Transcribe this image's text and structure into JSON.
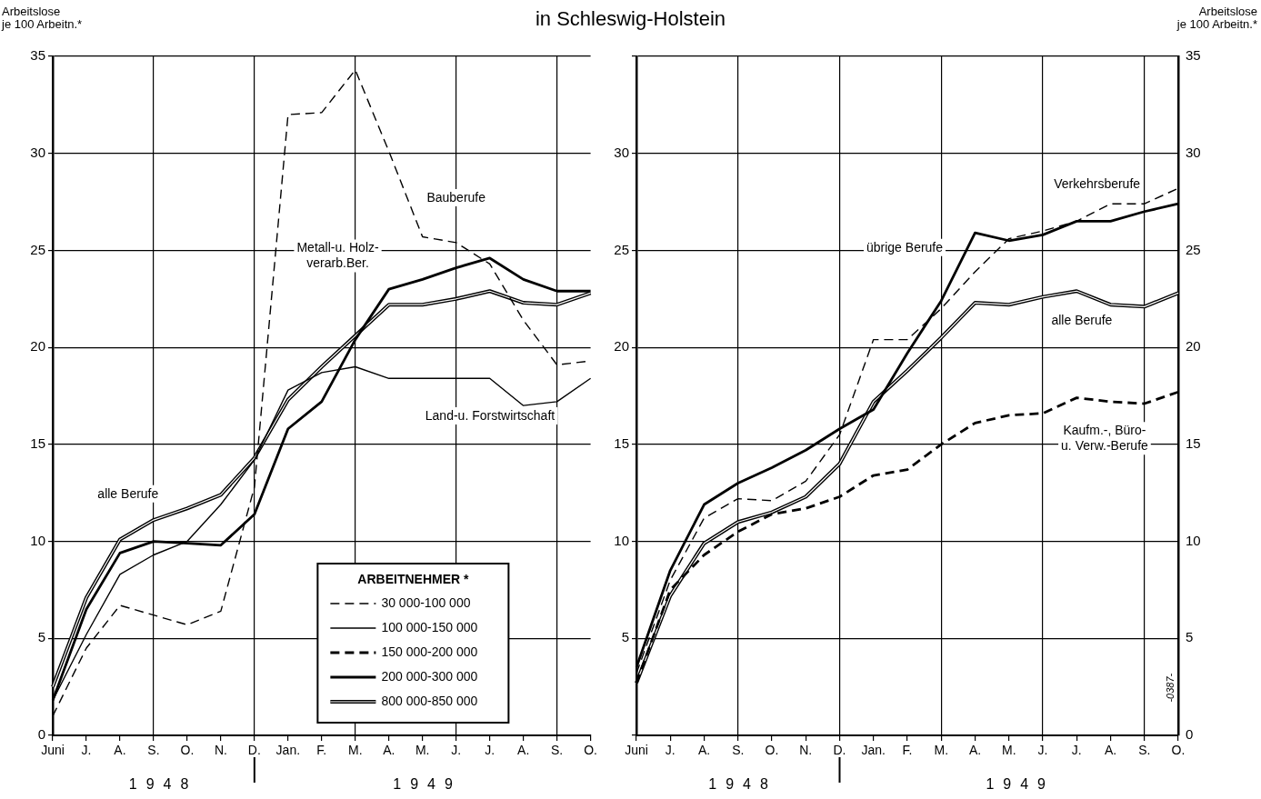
{
  "chart_data": [
    {
      "type": "line",
      "title": "in Schleswig-Holstein",
      "ylabel": "Arbeitslose\nje 100 Arbeitn.*",
      "legend_title": "ARBEITNEHMER *",
      "categories": [
        "Juni",
        "J.",
        "A.",
        "S.",
        "O.",
        "N.",
        "D.",
        "Jan.",
        "F.",
        "M.",
        "A.",
        "M.",
        "J.",
        "J.",
        "A.",
        "S.",
        "O."
      ],
      "series": [
        {
          "name": "30 000-100 000",
          "color": "#000000",
          "line_style": "dashed",
          "values": [
            1.0,
            4.5,
            6.7,
            6.2,
            5.7,
            6.4,
            12.8,
            32.0,
            32.1,
            34.3,
            30.1,
            25.7,
            25.4,
            24.3,
            21.4,
            19.1,
            19.3
          ]
        },
        {
          "name": "100 000-150 000",
          "color": "#000000",
          "line_style": "solid",
          "values": [
            1.8,
            5.2,
            8.3,
            9.3,
            10.0,
            11.9,
            14.2,
            17.8,
            18.7,
            19.0,
            18.4,
            18.4,
            18.4,
            18.4,
            17.0,
            17.2,
            18.4
          ]
        },
        {
          "name": "150 000-200 000",
          "color": "#000000",
          "line_style": "dashed",
          "values": [
            null,
            null,
            null,
            null,
            null,
            null,
            null,
            null,
            null,
            null,
            null,
            null,
            null,
            null,
            null,
            null,
            null
          ]
        },
        {
          "name": "200 000-300 000",
          "color": "#000000",
          "line_style": "solid",
          "values": [
            1.8,
            6.5,
            9.4,
            10.0,
            9.9,
            9.8,
            11.4,
            15.8,
            17.2,
            20.4,
            23.0,
            23.5,
            24.1,
            24.6,
            23.5,
            22.9,
            22.9
          ]
        },
        {
          "name": "800 000-850 000",
          "color": "#000000",
          "line_style": "solid",
          "values": [
            2.5,
            7.1,
            10.1,
            11.1,
            11.7,
            12.4,
            14.3,
            17.3,
            19.0,
            20.6,
            22.2,
            22.2,
            22.5,
            22.9,
            22.3,
            22.2,
            22.8
          ]
        }
      ],
      "ylim": [
        0,
        35
      ],
      "yticks": [
        0,
        5,
        10,
        15,
        20,
        25,
        30,
        35
      ],
      "grid": true,
      "legend": "bottom",
      "marker": "none",
      "annotations": [
        "1948",
        "1949",
        "alle Berufe",
        "Bauberufe",
        "Metall-u. Holz-\nverarb.Ber.",
        "Land-u. Forstwirtschaft"
      ]
    },
    {
      "type": "line",
      "y2label": "Arbeitslose\nje 100 Arbeitn.*",
      "categories": [
        "Juni",
        "J.",
        "A.",
        "S.",
        "O.",
        "N.",
        "D.",
        "Jan.",
        "F.",
        "M.",
        "A.",
        "M.",
        "J.",
        "J.",
        "A.",
        "S.",
        "O."
      ],
      "series": [
        {
          "color": "#000000",
          "line_style": "dashed",
          "values": [
            3.2,
            8.0,
            11.2,
            12.2,
            12.1,
            13.1,
            15.5,
            20.4,
            20.4,
            22.0,
            23.9,
            25.6,
            26.0,
            26.5,
            27.4,
            27.4,
            28.2
          ]
        },
        {
          "color": "#000000",
          "line_style": "dashed",
          "values": [
            2.7,
            7.5,
            9.3,
            10.5,
            11.4,
            11.7,
            12.3,
            13.4,
            13.7,
            15.0,
            16.1,
            16.5,
            16.6,
            17.4,
            17.2,
            17.1,
            17.7
          ]
        },
        {
          "color": "#000000",
          "line_style": "solid",
          "values": [
            3.5,
            8.5,
            11.9,
            13.0,
            13.8,
            14.7,
            15.8,
            16.8,
            19.7,
            22.4,
            25.9,
            25.5,
            25.8,
            26.5,
            26.5,
            27.0,
            27.4
          ]
        },
        {
          "color": "#000000",
          "line_style": "solid",
          "values": [
            2.7,
            7.2,
            9.9,
            11.0,
            11.5,
            12.3,
            14.0,
            17.2,
            18.8,
            20.5,
            22.3,
            22.2,
            22.6,
            22.9,
            22.2,
            22.1,
            22.8
          ]
        }
      ],
      "ylim": [
        0,
        35
      ],
      "yticks": [
        {
          "value": 0,
          "label": null
        },
        5,
        10,
        15,
        20,
        25,
        30,
        {
          "value": 35,
          "label": null
        }
      ],
      "y2lim": [
        0,
        35
      ],
      "y2ticks": [
        0,
        5,
        10,
        15,
        20,
        25,
        30,
        35
      ],
      "grid": true,
      "marker": "none",
      "annotations": [
        "1948",
        "1949",
        "übrige Berufe",
        "Verkehrsberufe",
        "alle Berufe",
        "Kaufm.-, Büro-\nu. Verw.-Berufe",
        "-0387-"
      ]
    }
  ]
}
